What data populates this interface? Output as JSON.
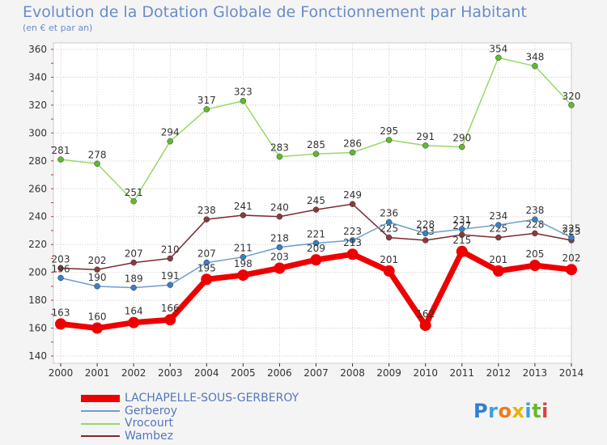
{
  "title": "Evolution de la Dotation Globale de Fonctionnement par Habitant",
  "subtitle": "(en € et par an)",
  "logo": "Proxiti",
  "chart_data": {
    "type": "line",
    "title": "Evolution de la Dotation Globale de Fonctionnement par Habitant",
    "subtitle": "(en € et par an)",
    "x": [
      "2000",
      "2001",
      "2002",
      "2003",
      "2004",
      "2005",
      "2006",
      "2007",
      "2008",
      "2009",
      "2010",
      "2011",
      "2012",
      "2013",
      "2014"
    ],
    "ylim": [
      140,
      360
    ],
    "yticks": [
      140,
      160,
      180,
      200,
      220,
      240,
      260,
      280,
      300,
      320,
      340,
      360
    ],
    "grid": true,
    "legend_position": "bottom-left",
    "series": [
      {
        "name": "Wambez",
        "color": "#7a2a2e",
        "marker": "#8b3a3e",
        "values": [
          203,
          202,
          207,
          210,
          238,
          241,
          240,
          245,
          249,
          225,
          223,
          227,
          225,
          228,
          223
        ]
      },
      {
        "name": "Gerberoy",
        "color": "#6a9ed0",
        "marker": "#3b7fc4",
        "values": [
          196,
          190,
          189,
          191,
          207,
          211,
          218,
          221,
          223,
          236,
          228,
          231,
          234,
          238,
          225
        ]
      },
      {
        "name": "Vrocourt",
        "color": "#96d865",
        "marker": "#5fbb2e",
        "values": [
          281,
          278,
          251,
          294,
          317,
          323,
          283,
          285,
          286,
          295,
          291,
          290,
          354,
          348,
          320
        ]
      },
      {
        "name": "LACHAPELLE-SOUS-GERBEROY",
        "color": "#ee0000",
        "marker": "#ee0000",
        "values": [
          163,
          160,
          164,
          166,
          195,
          198,
          203,
          209,
          213,
          201,
          162,
          215,
          201,
          205,
          202
        ]
      }
    ],
    "legend_order": [
      "LACHAPELLE-SOUS-GERBEROY",
      "Gerberoy",
      "Vrocourt",
      "Wambez"
    ]
  }
}
